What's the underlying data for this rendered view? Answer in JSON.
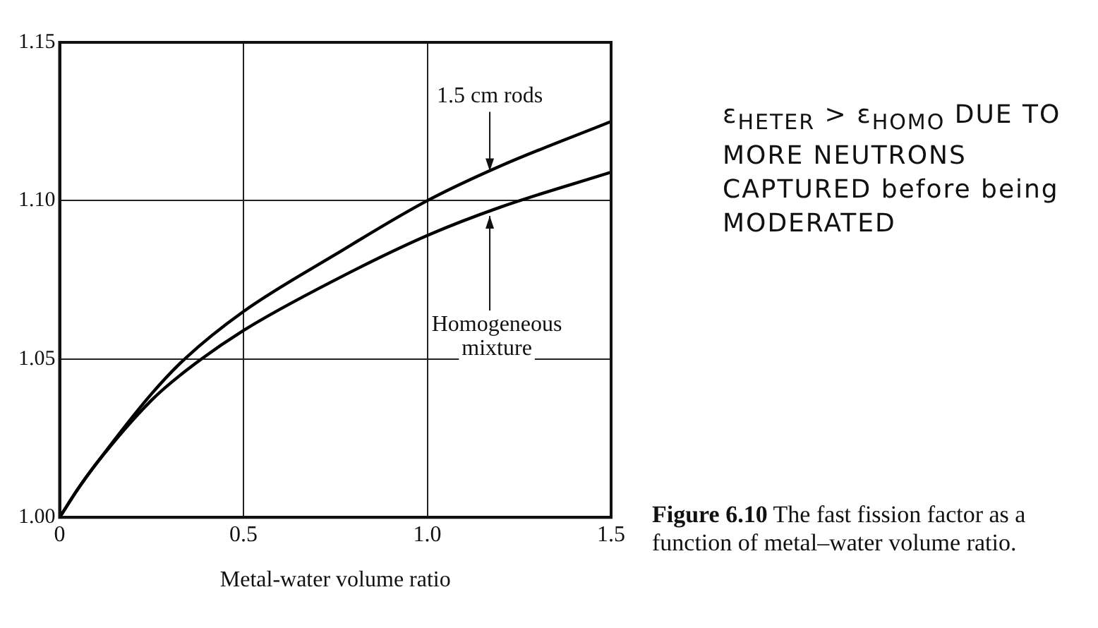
{
  "chart_data": {
    "type": "line",
    "xlabel": "Metal-water volume ratio",
    "xlim": [
      0,
      1.5
    ],
    "xticks": [
      0,
      0.5,
      {
        "value": 1,
        "label": "1.0"
      },
      1.5
    ],
    "ylim": [
      1,
      1.15
    ],
    "yticks": [
      {
        "value": 1,
        "label": "1.00"
      },
      1.05,
      {
        "value": 1.1,
        "label": "1.10"
      },
      1.15
    ],
    "grid": true,
    "legend": false,
    "marker": "none",
    "line_style": "solid",
    "x": [
      0,
      0.05,
      0.1,
      0.25,
      0.34,
      0.5,
      0.75,
      1.0,
      1.2,
      1.5
    ],
    "series": [
      {
        "color": "#000000",
        "values": [
          1.0,
          1.009,
          1.017,
          1.039,
          1.05,
          1.065,
          1.083,
          1.1,
          1.111,
          1.125
        ]
      },
      {
        "color": "#000000",
        "values": [
          1.0,
          1.009,
          1.017,
          1.037,
          1.046,
          1.059,
          1.075,
          1.089,
          1.098,
          1.109
        ]
      }
    ],
    "annotations": [
      {
        "text": "1.5 cm rods",
        "x": 1.17,
        "y": 1.108
      },
      {
        "text": "Homogeneous mixture",
        "x": 1.17,
        "y": 1.0965
      },
      "Figure 6.10 The fast fission factor as a function of metal–water volume ratio.",
      "ε$_{HETER}$ > ε$_{HOMO}$ DUE TO MORE NEUTRONS CAPTURED before being MODERATED"
    ]
  }
}
